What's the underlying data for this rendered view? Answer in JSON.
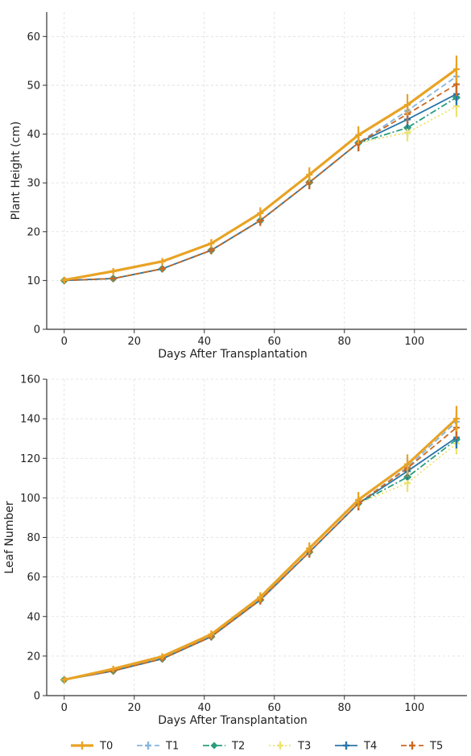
{
  "chart_data": [
    {
      "type": "line",
      "xlabel": "Days After Transplantation",
      "ylabel": "Plant Height (cm)",
      "xlim": [
        -5,
        115
      ],
      "ylim": [
        0,
        65
      ],
      "xticks": [
        0,
        20,
        40,
        60,
        80,
        100
      ],
      "yticks": [
        0,
        10,
        20,
        30,
        40,
        50,
        60
      ],
      "grid": true,
      "x": [
        0,
        14,
        28,
        42,
        56,
        70,
        84,
        98,
        112
      ],
      "series": [
        {
          "name": "T0",
          "values": [
            10.1,
            11.9,
            13.9,
            17.6,
            23.8,
            31.7,
            39.8,
            46.0,
            53.3
          ],
          "errors": [
            0.5,
            0.6,
            0.7,
            0.9,
            1.2,
            1.5,
            1.8,
            2.2,
            2.8
          ]
        },
        {
          "name": "T1",
          "values": [
            10.0,
            10.4,
            12.4,
            16.2,
            22.3,
            30.1,
            38.2,
            44.8,
            51.8
          ],
          "errors": [
            0.5,
            0.5,
            0.6,
            0.8,
            1.1,
            1.4,
            1.7,
            2.0,
            2.5
          ]
        },
        {
          "name": "T2",
          "values": [
            10.0,
            10.4,
            12.4,
            16.2,
            22.3,
            30.1,
            38.2,
            41.3,
            47.5
          ],
          "errors": [
            0.5,
            0.5,
            0.6,
            0.8,
            1.1,
            1.4,
            1.7,
            1.8,
            2.2
          ]
        },
        {
          "name": "T3",
          "values": [
            10.0,
            10.4,
            12.4,
            16.2,
            22.3,
            30.1,
            38.2,
            40.3,
            45.7
          ],
          "errors": [
            0.5,
            0.5,
            0.6,
            0.8,
            1.1,
            1.4,
            1.7,
            1.8,
            2.2
          ]
        },
        {
          "name": "T4",
          "values": [
            10.0,
            10.4,
            12.4,
            16.2,
            22.3,
            30.1,
            38.2,
            43.0,
            48.2
          ],
          "errors": [
            0.5,
            0.5,
            0.6,
            0.8,
            1.1,
            1.4,
            1.7,
            1.9,
            2.3
          ]
        },
        {
          "name": "T5",
          "values": [
            10.0,
            10.4,
            12.4,
            16.2,
            22.3,
            30.1,
            38.2,
            44.1,
            50.2
          ],
          "errors": [
            0.5,
            0.5,
            0.6,
            0.8,
            1.1,
            1.4,
            1.7,
            2.0,
            2.4
          ]
        }
      ]
    },
    {
      "type": "line",
      "xlabel": "Days After Transplantation",
      "ylabel": "Leaf Number",
      "xlim": [
        -5,
        115
      ],
      "ylim": [
        0,
        160
      ],
      "xticks": [
        0,
        20,
        40,
        60,
        80,
        100
      ],
      "yticks": [
        0,
        20,
        40,
        60,
        80,
        100,
        120,
        140,
        160
      ],
      "grid": true,
      "x": [
        0,
        14,
        28,
        42,
        56,
        70,
        84,
        98,
        112
      ],
      "series": [
        {
          "name": "T0",
          "values": [
            8.0,
            13.5,
            19.8,
            31.0,
            49.8,
            74.5,
            99.0,
            117.0,
            140.0
          ],
          "errors": [
            0.6,
            1.2,
            1.5,
            2.0,
            2.5,
            3.0,
            4.0,
            5.0,
            6.5
          ]
        },
        {
          "name": "T1",
          "values": [
            8.0,
            12.5,
            18.6,
            29.8,
            48.4,
            72.6,
            97.2,
            115.5,
            138.5
          ],
          "errors": [
            0.6,
            1.0,
            1.4,
            1.8,
            2.3,
            2.8,
            3.5,
            4.5,
            6.0
          ]
        },
        {
          "name": "T2",
          "values": [
            8.0,
            12.5,
            18.6,
            29.8,
            48.4,
            72.6,
            97.2,
            110.5,
            129.5
          ],
          "errors": [
            0.6,
            1.0,
            1.4,
            1.8,
            2.3,
            2.8,
            3.5,
            4.5,
            5.5
          ]
        },
        {
          "name": "T3",
          "values": [
            8.0,
            12.5,
            18.6,
            29.8,
            48.4,
            72.6,
            97.2,
            107.5,
            127.5
          ],
          "errors": [
            0.6,
            1.0,
            1.4,
            1.8,
            2.3,
            2.8,
            3.5,
            4.5,
            5.5
          ]
        },
        {
          "name": "T4",
          "values": [
            8.0,
            12.5,
            18.6,
            29.8,
            48.4,
            72.6,
            97.2,
            113.5,
            130.5
          ],
          "errors": [
            0.6,
            1.0,
            1.4,
            1.8,
            2.3,
            2.8,
            3.5,
            4.5,
            5.5
          ]
        },
        {
          "name": "T5",
          "values": [
            8.0,
            12.5,
            18.6,
            29.8,
            48.4,
            72.6,
            97.2,
            115.0,
            135.5
          ],
          "errors": [
            0.6,
            1.0,
            1.4,
            1.8,
            2.3,
            2.8,
            3.5,
            4.5,
            5.8
          ]
        }
      ]
    }
  ],
  "legend": {
    "placement": "bottom-center",
    "items": [
      {
        "label": "T0",
        "color": "#E8A325",
        "dash": "solid",
        "marker": "plus"
      },
      {
        "label": "T1",
        "color": "#86B6DE",
        "dash": "dashed",
        "marker": "plus"
      },
      {
        "label": "T2",
        "color": "#2A9D7E",
        "dash": "dashdot",
        "marker": "diamond"
      },
      {
        "label": "T3",
        "color": "#EDE36A",
        "dash": "dotted",
        "marker": "plus"
      },
      {
        "label": "T4",
        "color": "#2A75A8",
        "dash": "solid",
        "marker": "plus"
      },
      {
        "label": "T5",
        "color": "#CC6A22",
        "dash": "dashed",
        "marker": "plus"
      }
    ]
  }
}
